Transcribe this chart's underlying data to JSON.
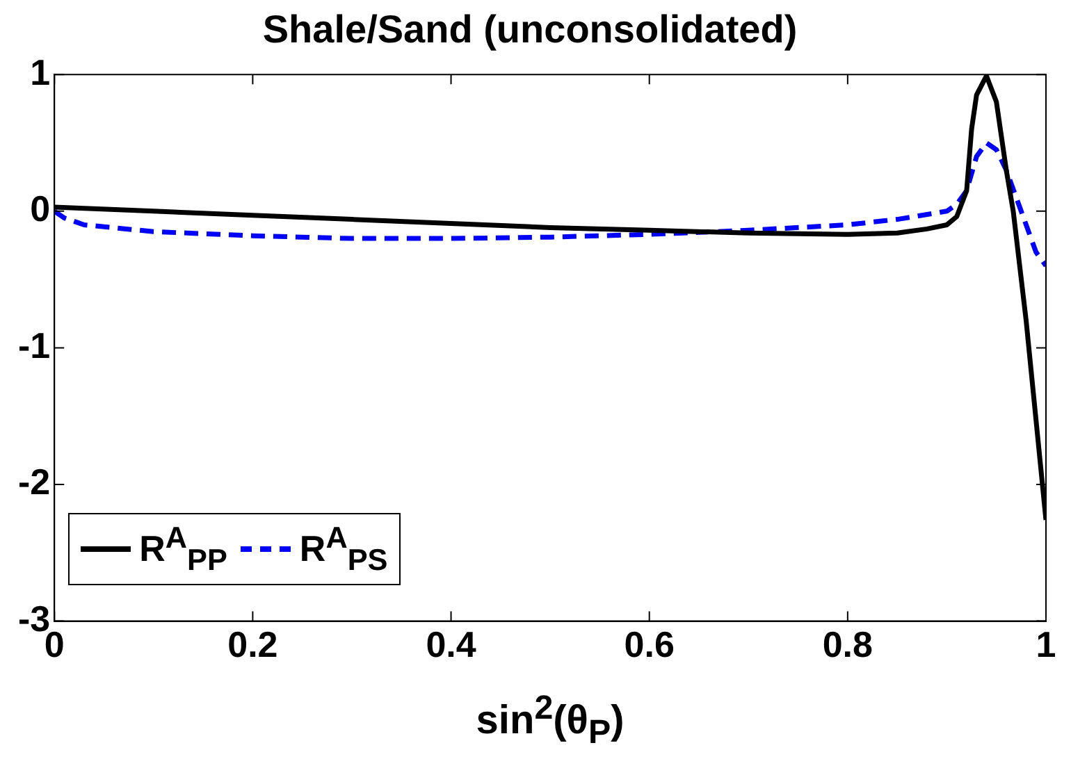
{
  "chart_data": {
    "type": "line",
    "title": "Shale/Sand (unconsolidated)",
    "xlabel": "sin$^{2}$(θ$_{P}$)",
    "xlim": [
      0,
      1
    ],
    "xticks": [
      0,
      0.2,
      0.4,
      0.6,
      0.8,
      1
    ],
    "ylim": [
      -3,
      1
    ],
    "yticks": [
      -3,
      -2,
      -1,
      0,
      1
    ],
    "grid": false,
    "legend": "bottom left",
    "marker": "none",
    "series": [
      {
        "name": "R$^{A}$$_{PP}$",
        "color": "#000000",
        "line_style": "solid",
        "x": [
          0,
          0.1,
          0.2,
          0.3,
          0.4,
          0.5,
          0.6,
          0.7,
          0.8,
          0.85,
          0.88,
          0.9,
          0.91,
          0.92,
          0.925,
          0.93,
          0.94,
          0.95,
          0.96,
          0.967,
          0.98,
          1
        ],
        "values": [
          0.03,
          0,
          -0.03,
          -0.06,
          -0.09,
          -0.12,
          -0.14,
          -0.16,
          -0.17,
          -0.16,
          -0.13,
          -0.1,
          -0.04,
          0.15,
          0.6,
          0.85,
          0.99,
          0.8,
          0.3,
          0,
          -0.8,
          -2.26
        ]
      },
      {
        "name": "R$^{A}$$_{PS}$",
        "color": "#0000ff",
        "line_style": "dashed",
        "x": [
          0,
          0.01,
          0.03,
          0.1,
          0.2,
          0.3,
          0.4,
          0.5,
          0.6,
          0.7,
          0.8,
          0.85,
          0.9,
          0.91,
          0.92,
          0.93,
          0.94,
          0.95,
          0.96,
          0.975,
          0.99,
          1
        ],
        "values": [
          0,
          -0.05,
          -0.1,
          -0.15,
          -0.18,
          -0.2,
          -0.2,
          -0.19,
          -0.17,
          -0.14,
          -0.1,
          -0.06,
          0,
          0.05,
          0.15,
          0.4,
          0.5,
          0.45,
          0.3,
          0,
          -0.3,
          -0.4
        ]
      }
    ]
  }
}
